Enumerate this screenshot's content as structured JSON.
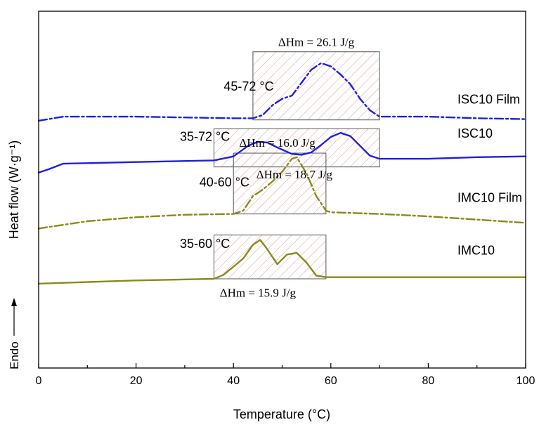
{
  "chart_data": {
    "type": "line",
    "xlabel": "Temperature (°C)",
    "ylabel": "Heat flow (W·g⁻¹)",
    "endo_label": "Endo",
    "xlim": [
      0,
      100
    ],
    "x_ticks": [
      "0",
      "20",
      "40",
      "60",
      "80",
      "100"
    ],
    "grid": false,
    "series": [
      {
        "name": "ISC10 Film",
        "color": "#1f1fe0",
        "dash": "dashdot",
        "x": [
          0,
          5,
          20,
          40,
          44,
          46,
          48,
          50,
          52,
          54,
          56,
          58,
          60,
          62,
          64,
          66,
          68,
          70,
          80,
          90,
          100
        ],
        "y": [
          1.85,
          1.9,
          1.9,
          1.88,
          1.88,
          1.92,
          2.04,
          2.12,
          2.16,
          2.32,
          2.48,
          2.56,
          2.52,
          2.42,
          2.3,
          2.12,
          1.98,
          1.9,
          1.9,
          1.88,
          1.87
        ]
      },
      {
        "name": "ISC10",
        "color": "#1f1fe0",
        "dash": "solid",
        "x": [
          0,
          2,
          5,
          20,
          36,
          40,
          43,
          45,
          47,
          49,
          52,
          54,
          56,
          58,
          60,
          62,
          64,
          66,
          68,
          70,
          80,
          90,
          100
        ],
        "y": [
          1.21,
          1.25,
          1.32,
          1.34,
          1.36,
          1.41,
          1.54,
          1.59,
          1.58,
          1.52,
          1.44,
          1.43,
          1.46,
          1.55,
          1.65,
          1.7,
          1.66,
          1.54,
          1.42,
          1.38,
          1.38,
          1.4,
          1.41
        ]
      },
      {
        "name": "IMC10 Film",
        "color": "#8a8a18",
        "dash": "dashdot",
        "x": [
          0,
          10,
          20,
          30,
          40,
          42,
          44,
          46,
          48,
          50,
          52,
          53,
          55,
          57,
          59,
          60,
          70,
          80,
          90,
          100
        ],
        "y": [
          0.52,
          0.61,
          0.66,
          0.69,
          0.7,
          0.74,
          0.92,
          1.0,
          1.1,
          1.22,
          1.38,
          1.4,
          1.2,
          0.92,
          0.74,
          0.72,
          0.7,
          0.67,
          0.63,
          0.59
        ]
      },
      {
        "name": "IMC10",
        "color": "#8a8a18",
        "dash": "solid",
        "x": [
          0,
          20,
          36,
          38,
          40,
          42,
          44,
          45.5,
          47,
          49,
          51,
          53,
          55,
          57,
          59,
          60,
          80,
          100
        ],
        "y": [
          -0.16,
          -0.12,
          -0.1,
          -0.05,
          0.05,
          0.15,
          0.32,
          0.38,
          0.26,
          0.08,
          0.2,
          0.22,
          0.1,
          -0.06,
          -0.08,
          -0.08,
          -0.08,
          -0.08
        ]
      }
    ],
    "ylim": [
      -1.2,
      3.2
    ],
    "regions": [
      {
        "x0": 44,
        "x1": 70,
        "y0": 1.86,
        "y1": 2.7,
        "color": "#e08080"
      },
      {
        "x0": 36,
        "x1": 70,
        "y0": 1.28,
        "y1": 1.75,
        "color": "#e08080"
      },
      {
        "x0": 40,
        "x1": 59,
        "y0": 0.7,
        "y1": 1.45,
        "color": "#e08080"
      },
      {
        "x0": 36,
        "x1": 59,
        "y0": -0.1,
        "y1": 0.44,
        "color": "#e08080"
      }
    ],
    "annotations": [
      {
        "text": "ΔHm = 26.1 J/g",
        "x": 57,
        "y": 2.77
      },
      {
        "text": "45-72 °C",
        "x": 38,
        "y": 2.22
      },
      {
        "text": "ISC10 Film",
        "x": 86,
        "y": 2.06
      },
      {
        "text": "35-72 °C",
        "x": 29,
        "y": 1.6
      },
      {
        "text": "ISC10",
        "x": 86,
        "y": 1.64
      },
      {
        "text": "ΔHm = 18.7 J/g",
        "x": 52.5,
        "y": 1.14
      },
      {
        "text": "ΔHm = 16.0 J/g",
        "x": 49,
        "y": 1.53
      },
      {
        "text": "40-60 °C",
        "x": 33,
        "y": 1.04
      },
      {
        "text": "IMC10 Film",
        "x": 86,
        "y": 0.85
      },
      {
        "text": "35-60 °C",
        "x": 29,
        "y": 0.28
      },
      {
        "text": "IMC10",
        "x": 86,
        "y": 0.2
      },
      {
        "text": "ΔHm = 15.9 J/g",
        "x": 45,
        "y": -0.32
      }
    ]
  }
}
